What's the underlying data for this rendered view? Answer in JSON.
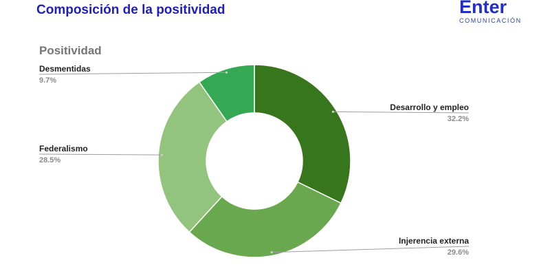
{
  "header": {
    "title": "Composición de la positividad",
    "logo_main": "Enter",
    "logo_sub": "COMUNICACIÓN"
  },
  "colors": {
    "title": "#1f1fb8",
    "logo": "#1f2fc8"
  },
  "chart_data": {
    "type": "pie",
    "donut": true,
    "title": "Positividad",
    "legend": "none",
    "slices": [
      {
        "label": "Desarrollo y empleo",
        "value": 32.2,
        "display": "32.2%",
        "color": "#38761d"
      },
      {
        "label": "Injerencia externa",
        "value": 29.6,
        "display": "29.6%",
        "color": "#6aa84f"
      },
      {
        "label": "Federalismo",
        "value": 28.5,
        "display": "28.5%",
        "color": "#93c47d"
      },
      {
        "label": "Desmentidas",
        "value": 9.7,
        "display": "9.7%",
        "color": "#34a853"
      }
    ]
  }
}
